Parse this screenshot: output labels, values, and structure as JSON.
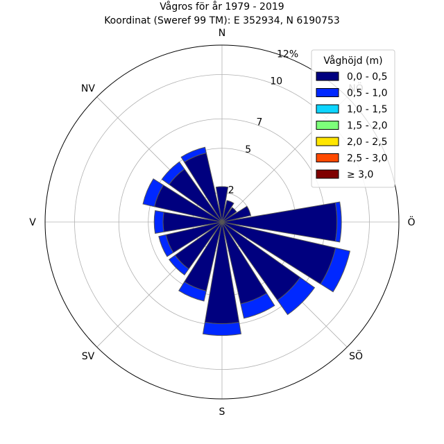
{
  "chart_data": {
    "type": "windrose",
    "title": "Vågros för år 1979 - 2019",
    "subtitle": "Koordinat (Sweref 99 TM): E 352934, N 6190753",
    "directions": [
      "N",
      "NNÖ",
      "NÖ",
      "ÖNÖ",
      "Ö",
      "ÖSÖ",
      "SÖ",
      "SSÖ",
      "S",
      "SSV",
      "SV",
      "VSV",
      "V",
      "VNV",
      "NV",
      "NNV"
    ],
    "compass_labels": [
      "N",
      "NÖ",
      "Ö",
      "SÖ",
      "S",
      "SV",
      "V",
      "NV"
    ],
    "r_ticks": [
      2,
      5,
      7,
      10,
      12
    ],
    "r_tick_labels": [
      "2",
      "5",
      "7",
      "10",
      "12%"
    ],
    "r_max": 12,
    "r_unit": "%",
    "legend": {
      "title": "Våghöjd (m)",
      "placement": "top-right",
      "items": [
        {
          "label": "0,0 - 0,5",
          "color": "#00007f"
        },
        {
          "label": "0,5 - 1,0",
          "color": "#0028ff"
        },
        {
          "label": "1,0 - 1,5",
          "color": "#0dd5ff"
        },
        {
          "label": "1,5 - 2,0",
          "color": "#7dff7a"
        },
        {
          "label": "2,0 - 2,5",
          "color": "#ffe600"
        },
        {
          "label": "2,5 - 3,0",
          "color": "#ff4a00"
        },
        {
          "label": "≥ 3,0",
          "color": "#7f0000"
        }
      ]
    },
    "series": [
      {
        "name": "0,0 - 0,5",
        "color": "#00007f",
        "values": [
          2.4,
          1.5,
          1.2,
          2.0,
          7.8,
          7.9,
          6.5,
          5.7,
          6.9,
          4.8,
          3.9,
          3.9,
          4.0,
          4.7,
          4.4,
          4.8
        ]
      },
      {
        "name": "0,5 - 1,0",
        "color": "#0028ff",
        "values": [
          0.0,
          0.0,
          0.0,
          0.0,
          0.3,
          1.0,
          1.2,
          1.0,
          0.8,
          0.7,
          0.5,
          0.5,
          0.6,
          0.8,
          0.6,
          0.4
        ]
      }
    ],
    "grid": true
  }
}
